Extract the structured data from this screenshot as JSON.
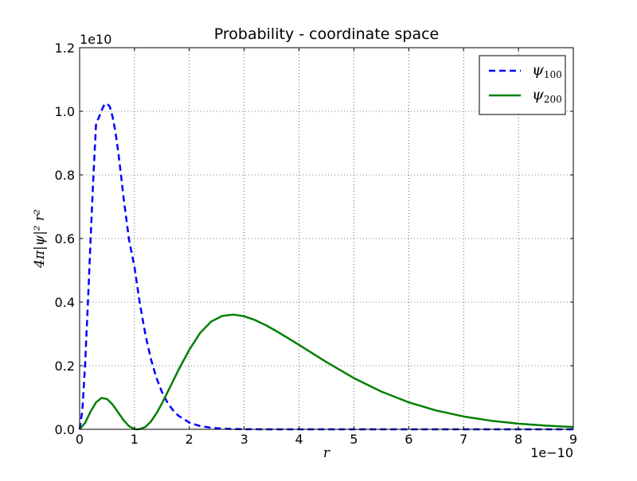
{
  "chart_data": {
    "type": "line",
    "title": "Probability - coordinate space",
    "xlabel": "r",
    "ylabel": "4π|ψ|² r²",
    "x_multiplier": "1e−10",
    "y_multiplier": "1e10",
    "xlim": [
      0,
      9
    ],
    "ylim": [
      0,
      1.2
    ],
    "x_ticks": [
      0,
      1,
      2,
      3,
      4,
      5,
      6,
      7,
      8,
      9
    ],
    "y_ticks": [
      0.0,
      0.2,
      0.4,
      0.6,
      0.8,
      1.0,
      1.2
    ],
    "x_tick_labels": [
      "0",
      "1",
      "2",
      "3",
      "4",
      "5",
      "6",
      "7",
      "8",
      "9"
    ],
    "y_tick_labels": [
      "0.0",
      "0.2",
      "0.4",
      "0.6",
      "0.8",
      "1.0",
      "1.2"
    ],
    "grid": true,
    "legend_position": "top-right",
    "series": [
      {
        "name": "ψ100",
        "name_base": "ψ",
        "name_sub": "100",
        "color": "#0000ff",
        "style": "dashed",
        "x": [
          0,
          0.05,
          0.1,
          0.15,
          0.2,
          0.25,
          0.3,
          0.35,
          0.4,
          0.45,
          0.5,
          0.55,
          0.6,
          0.65,
          0.7,
          0.75,
          0.8,
          0.9,
          1.0,
          1.1,
          1.2,
          1.3,
          1.4,
          1.5,
          1.6,
          1.7,
          1.8,
          2.0,
          2.2,
          2.4,
          2.6,
          2.8,
          3.0,
          3.3,
          3.6,
          4.0,
          4.5,
          5.0,
          6.0,
          7.0,
          8.0,
          9.0
        ],
        "y": [
          0,
          0.0596,
          0.2044,
          0.3936,
          0.5969,
          0.7909,
          0.9621,
          0.9803,
          1.0026,
          1.0209,
          1.0244,
          1.0145,
          0.9833,
          0.9383,
          0.8769,
          0.8063,
          0.7295,
          0.5973,
          0.5096,
          0.3937,
          0.2972,
          0.2207,
          0.162,
          0.1176,
          0.0846,
          0.0605,
          0.0429,
          0.0211,
          0.0102,
          0.0048,
          0.0023,
          0.001,
          0.0005,
          0.0001,
          0.0,
          0.0,
          0.0,
          0.0,
          0.0,
          0.0,
          0.0,
          0.0
        ]
      },
      {
        "name": "ψ200",
        "name_base": "ψ",
        "name_sub": "200",
        "color": "#008000",
        "style": "solid",
        "x": [
          0,
          0.1,
          0.2,
          0.3,
          0.4,
          0.5,
          0.6,
          0.7,
          0.8,
          0.9,
          1.0,
          1.06,
          1.1,
          1.2,
          1.3,
          1.4,
          1.5,
          1.6,
          1.8,
          2.0,
          2.2,
          2.4,
          2.6,
          2.8,
          3.0,
          3.2,
          3.4,
          3.6,
          3.8,
          4.0,
          4.5,
          5.0,
          5.5,
          6.0,
          6.5,
          7.0,
          7.5,
          8.0,
          8.5,
          9.0
        ],
        "y": [
          0,
          0.0205,
          0.0559,
          0.0849,
          0.0986,
          0.0952,
          0.0782,
          0.0537,
          0.0289,
          0.0098,
          0.0007,
          0.0,
          0.0011,
          0.0075,
          0.0247,
          0.0501,
          0.0812,
          0.1157,
          0.1859,
          0.2503,
          0.3038,
          0.339,
          0.3565,
          0.3608,
          0.3556,
          0.3435,
          0.3269,
          0.3075,
          0.2867,
          0.2654,
          0.2113,
          0.161,
          0.1187,
          0.0849,
          0.0592,
          0.0404,
          0.027,
          0.0177,
          0.0115,
          0.0073
        ]
      }
    ]
  }
}
